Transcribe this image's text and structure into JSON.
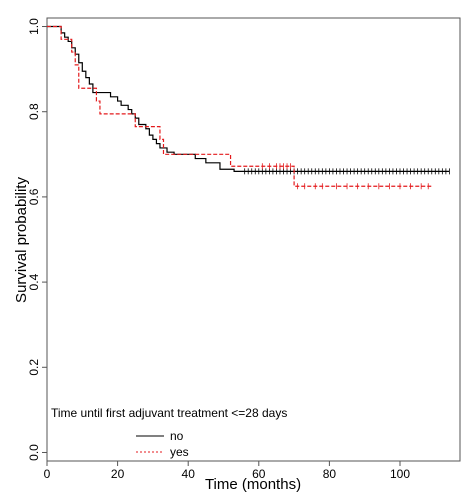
{
  "chart_data": {
    "type": "line",
    "subtype": "kaplan-meier survival curve",
    "xlabel": "Time (months)",
    "ylabel": "Survival probability",
    "xlim": [
      0,
      117
    ],
    "ylim": [
      -0.02,
      1.02
    ],
    "x_ticks": [
      0,
      20,
      40,
      60,
      80,
      100
    ],
    "y_ticks": [
      0.0,
      0.2,
      0.4,
      0.6,
      0.8,
      1.0
    ],
    "x_tick_labels": [
      "0",
      "20",
      "40",
      "60",
      "80",
      "100"
    ],
    "y_tick_labels": [
      "0.0",
      "0.2",
      "0.4",
      "0.6",
      "0.8",
      "1.0"
    ],
    "grid": false,
    "legend": {
      "title": "Time until first adjuvant treatment <=28 days",
      "placement": "bottom-left"
    },
    "series": [
      {
        "name": "no",
        "color": "#000000",
        "style": "solid",
        "steps": [
          [
            0,
            1.0
          ],
          [
            4,
            0.985
          ],
          [
            5,
            0.975
          ],
          [
            6,
            0.965
          ],
          [
            7,
            0.95
          ],
          [
            8,
            0.935
          ],
          [
            9,
            0.915
          ],
          [
            10,
            0.895
          ],
          [
            11,
            0.88
          ],
          [
            12,
            0.865
          ],
          [
            13,
            0.845
          ],
          [
            18,
            0.835
          ],
          [
            20,
            0.825
          ],
          [
            21,
            0.815
          ],
          [
            23,
            0.805
          ],
          [
            24,
            0.795
          ],
          [
            25,
            0.785
          ],
          [
            26,
            0.77
          ],
          [
            28,
            0.76
          ],
          [
            29,
            0.745
          ],
          [
            30,
            0.735
          ],
          [
            31,
            0.725
          ],
          [
            32,
            0.715
          ],
          [
            34,
            0.705
          ],
          [
            36,
            0.7
          ],
          [
            42,
            0.69
          ],
          [
            45,
            0.68
          ],
          [
            49,
            0.665
          ],
          [
            53,
            0.66
          ]
        ],
        "end_x": 114,
        "censor_x": [
          56,
          57,
          58,
          59,
          60,
          61,
          62,
          63,
          64,
          65,
          66,
          67,
          68,
          69,
          70,
          71,
          72,
          73,
          74,
          75,
          76,
          77,
          78,
          79,
          80,
          81,
          82,
          83,
          84,
          85,
          86,
          87,
          88,
          89,
          90,
          91,
          92,
          93,
          94,
          95,
          96,
          97,
          98,
          99,
          100,
          101,
          102,
          103,
          104,
          105,
          106,
          107,
          108,
          109,
          110,
          111,
          112,
          113,
          114
        ]
      },
      {
        "name": "yes",
        "color": "#e41a1c",
        "style": "dashed",
        "steps": [
          [
            0,
            1.0
          ],
          [
            4,
            0.97
          ],
          [
            7,
            0.94
          ],
          [
            8,
            0.91
          ],
          [
            9,
            0.855
          ],
          [
            14,
            0.825
          ],
          [
            15,
            0.795
          ],
          [
            25,
            0.765
          ],
          [
            32,
            0.735
          ],
          [
            33,
            0.7
          ],
          [
            52,
            0.672
          ],
          [
            70,
            0.625
          ]
        ],
        "end_x": 109,
        "censor_x": [
          61,
          63,
          65,
          66,
          67,
          68,
          69,
          71,
          73,
          76,
          78,
          82,
          85,
          88,
          91,
          94,
          97,
          100,
          103,
          106,
          108
        ]
      }
    ]
  }
}
